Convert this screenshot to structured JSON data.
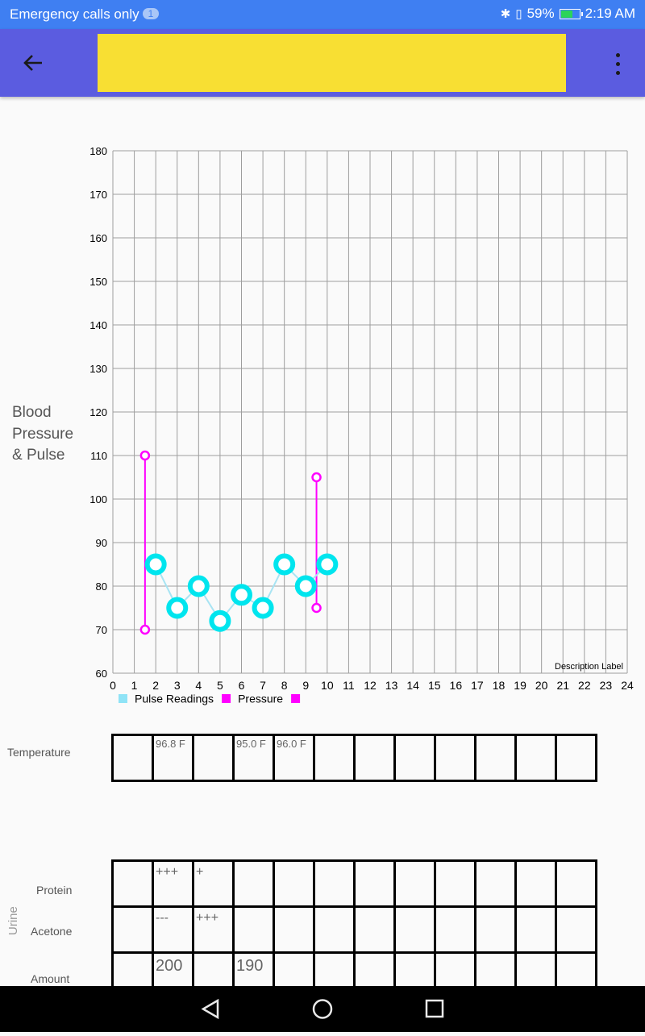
{
  "status_bar": {
    "carrier": "Emergency calls only",
    "badge": "1",
    "battery": "59%",
    "time": "2:19 AM",
    "battery_level": 0.59
  },
  "app_bar": {
    "title": "",
    "title_color": "#f8df33",
    "bar_color": "#5b5ce0",
    "back_icon": "arrow-left-icon",
    "menu_icon": "more-vert-icon"
  },
  "chart": {
    "side_label_lines": [
      "Blood",
      "Pressure",
      "& Pulse"
    ]
  },
  "chart_data": {
    "type": "line",
    "xlim": [
      0,
      24
    ],
    "ylim": [
      60,
      180
    ],
    "x_ticks": [
      0,
      1,
      2,
      3,
      4,
      5,
      6,
      7,
      8,
      9,
      10,
      11,
      12,
      13,
      14,
      15,
      16,
      17,
      18,
      19,
      20,
      21,
      22,
      23,
      24
    ],
    "y_ticks": [
      60,
      70,
      80,
      90,
      100,
      110,
      120,
      130,
      140,
      150,
      160,
      170,
      180
    ],
    "grid": true,
    "description": "Description Label",
    "legend": {
      "position": "bottom-left",
      "entries": [
        "Pulse Readings",
        "Pressure",
        ""
      ]
    },
    "series": [
      {
        "name": "Pulse Readings",
        "color": "#00e5ee",
        "x": [
          2,
          3,
          4,
          5,
          6,
          7,
          8,
          9,
          10
        ],
        "y": [
          85,
          75,
          80,
          72,
          78,
          75,
          85,
          80,
          85
        ]
      },
      {
        "name": "Pressure",
        "color": "#ff00ff",
        "ranges": [
          {
            "x": 1.5,
            "high": 110,
            "low": 70
          },
          {
            "x": 9.5,
            "high": 105,
            "low": 75
          }
        ]
      }
    ]
  },
  "temperature": {
    "label": "Temperature",
    "cells": [
      "",
      "96.8 F",
      "",
      "95.0 F",
      "96.0 F",
      "",
      "",
      "",
      "",
      "",
      "",
      ""
    ]
  },
  "urine": {
    "group_label": "Urine",
    "rows": [
      {
        "label": "Protein",
        "cells": [
          "",
          "+++",
          "+",
          "",
          "",
          "",
          "",
          "",
          "",
          "",
          "",
          ""
        ]
      },
      {
        "label": "Acetone",
        "cells": [
          "",
          "---",
          "+++",
          "",
          "",
          "",
          "",
          "",
          "",
          "",
          "",
          ""
        ]
      },
      {
        "label": "Amount",
        "cells": [
          "",
          "200",
          "",
          "190",
          "",
          "",
          "",
          "",
          "",
          "",
          "",
          ""
        ]
      }
    ]
  },
  "nav_bar": {
    "back_icon": "nav-back-icon",
    "home_icon": "nav-home-icon",
    "recents_icon": "nav-recents-icon"
  }
}
